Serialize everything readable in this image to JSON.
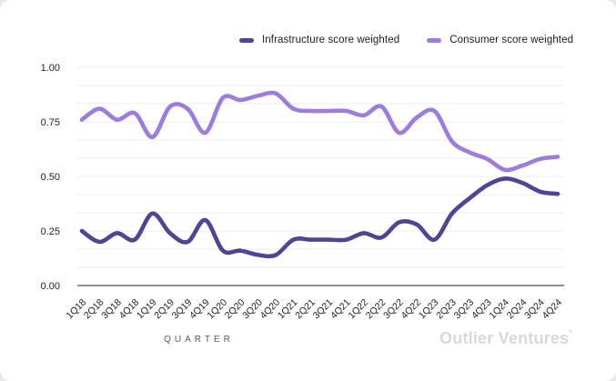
{
  "chart_data": {
    "type": "line",
    "title": "",
    "xlabel": "QUARTER",
    "ylabel": "",
    "ylim": [
      0,
      1
    ],
    "grid": "horizontal, minor lines every 1/12, light gray; dark baseline at 0",
    "minor_divisions": 12,
    "legend_position": "top-center-right",
    "y_ticks": [
      {
        "label": "0.00",
        "value": 0
      },
      {
        "label": "0.25",
        "value": 0.25
      },
      {
        "label": "0.50",
        "value": 0.5
      },
      {
        "label": "0.75",
        "value": 0.75
      },
      {
        "label": "1.00",
        "value": 1
      }
    ],
    "categories": [
      "1Q18",
      "2Q18",
      "3Q18",
      "4Q18",
      "1Q19",
      "2Q19",
      "3Q19",
      "4Q19",
      "1Q20",
      "2Q20",
      "3Q20",
      "4Q20",
      "1Q21",
      "2Q21",
      "3Q21",
      "4Q21",
      "1Q22",
      "2Q22",
      "3Q22",
      "4Q22",
      "1Q23",
      "2Q23",
      "3Q23",
      "4Q23",
      "1Q24",
      "2Q24",
      "3Q24",
      "4Q24"
    ],
    "series": [
      {
        "name": "Infrastructure score weighted",
        "color": "#4f4496",
        "values": [
          0.25,
          0.2,
          0.24,
          0.21,
          0.33,
          0.24,
          0.2,
          0.3,
          0.16,
          0.16,
          0.14,
          0.14,
          0.21,
          0.21,
          0.21,
          0.21,
          0.24,
          0.22,
          0.29,
          0.28,
          0.21,
          0.33,
          0.4,
          0.46,
          0.49,
          0.47,
          0.43,
          0.42
        ]
      },
      {
        "name": "Consumer score weighted",
        "color": "#9c7ce0",
        "values": [
          0.76,
          0.81,
          0.76,
          0.79,
          0.68,
          0.82,
          0.81,
          0.7,
          0.86,
          0.85,
          0.87,
          0.88,
          0.81,
          0.8,
          0.8,
          0.8,
          0.78,
          0.82,
          0.7,
          0.77,
          0.8,
          0.66,
          0.61,
          0.58,
          0.53,
          0.55,
          0.58,
          0.59
        ]
      }
    ]
  },
  "footer": {
    "x_axis_title": "QUARTER",
    "brand": "Outlier Ventures",
    "brand_mark": "*"
  }
}
